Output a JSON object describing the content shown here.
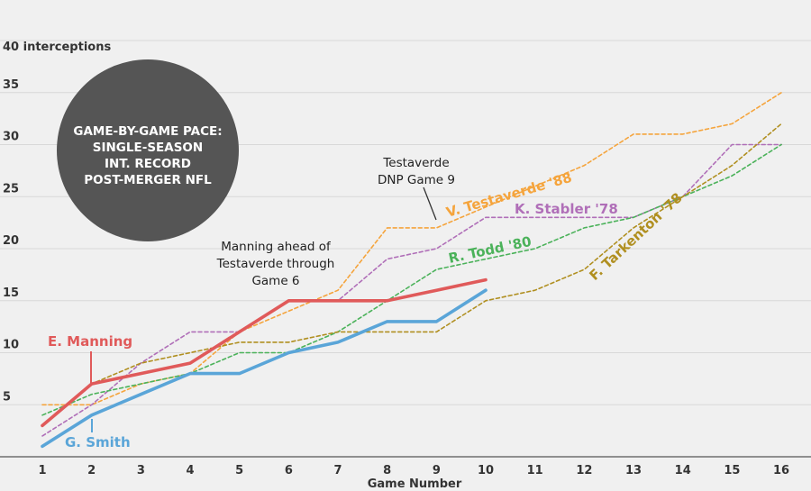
{
  "chart_data": {
    "type": "line",
    "y_axis_label": "40 interceptions",
    "xlabel": "Game Number",
    "xlim": [
      1,
      16
    ],
    "ylim": [
      0,
      40
    ],
    "y_ticks": [
      5,
      10,
      15,
      20,
      25,
      30,
      35
    ],
    "x_ticks": [
      1,
      2,
      3,
      4,
      5,
      6,
      7,
      8,
      9,
      10,
      11,
      12,
      13,
      14,
      15,
      16
    ],
    "grid": "horizontal",
    "badge_lines": [
      "GAME-BY-GAME PACE:",
      "SINGLE-SEASON",
      "INT. RECORD",
      "POST-MERGER NFL"
    ],
    "annotations": [
      {
        "id": "manning-note",
        "lines": [
          "Manning ahead of",
          "Testaverde through",
          "Game 6"
        ]
      },
      {
        "id": "testaverde-note",
        "lines": [
          "Testaverde",
          "DNP Game 9"
        ]
      }
    ],
    "series": [
      {
        "key": "testaverde",
        "name": "V. Testaverde '88",
        "color": "#f5a43c",
        "style": "dashed",
        "x": [
          1,
          2,
          3,
          4,
          5,
          6,
          7,
          8,
          9,
          10,
          11,
          12,
          13,
          14,
          15,
          16
        ],
        "values": [
          5,
          5,
          7,
          8,
          12,
          14,
          16,
          22,
          22,
          24,
          26,
          28,
          31,
          31,
          32,
          35
        ]
      },
      {
        "key": "stabler",
        "name": "K. Stabler '78",
        "color": "#b06fb8",
        "style": "dashed",
        "x": [
          1,
          2,
          3,
          4,
          5,
          6,
          7,
          8,
          9,
          10,
          11,
          12,
          13,
          14,
          15,
          16
        ],
        "values": [
          2,
          5,
          9,
          12,
          12,
          15,
          15,
          19,
          20,
          23,
          23,
          23,
          23,
          25,
          30,
          30
        ]
      },
      {
        "key": "todd",
        "name": "R. Todd '80",
        "color": "#4bb25a",
        "style": "dashed",
        "x": [
          1,
          2,
          3,
          4,
          5,
          6,
          7,
          8,
          9,
          10,
          11,
          12,
          13,
          14,
          15,
          16
        ],
        "values": [
          4,
          6,
          7,
          8,
          10,
          10,
          12,
          15,
          18,
          19,
          20,
          22,
          23,
          25,
          27,
          30
        ]
      },
      {
        "key": "tarkenton",
        "name": "F. Tarkenton '78",
        "color": "#b08f20",
        "style": "dashed",
        "x": [
          1,
          2,
          3,
          4,
          5,
          6,
          7,
          8,
          9,
          10,
          11,
          12,
          13,
          14,
          15,
          16
        ],
        "values": [
          3,
          7,
          9,
          10,
          11,
          11,
          12,
          12,
          12,
          15,
          16,
          18,
          22,
          25,
          28,
          32
        ]
      },
      {
        "key": "manning",
        "name": "E. Manning",
        "color": "#e05a5a",
        "style": "solid",
        "x": [
          1,
          2,
          3,
          4,
          5,
          6,
          7,
          8,
          9,
          10
        ],
        "values": [
          3,
          7,
          8,
          9,
          12,
          15,
          15,
          15,
          16,
          17
        ]
      },
      {
        "key": "smith",
        "name": "G. Smith",
        "color": "#5aa5d8",
        "style": "solid",
        "x": [
          1,
          2,
          3,
          4,
          5,
          6,
          7,
          8,
          9,
          10
        ],
        "values": [
          1,
          4,
          6,
          8,
          8,
          10,
          11,
          13,
          13,
          16
        ]
      }
    ]
  }
}
